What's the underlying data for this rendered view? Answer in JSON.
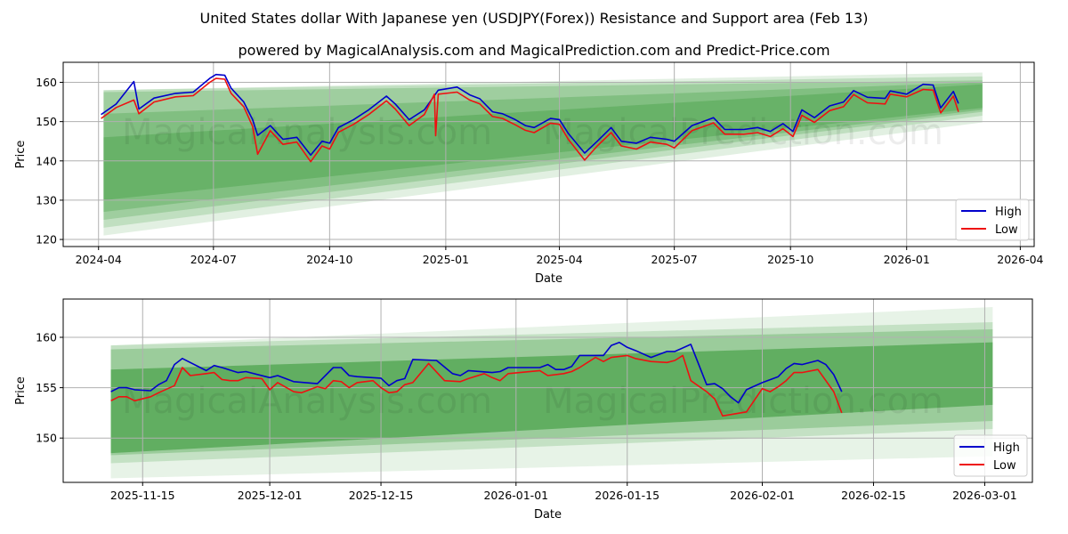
{
  "title": "United States dollar With Japanese yen (USDJPY(Forex)) Resistance and Support area (Feb 13)",
  "subtitle": "powered by MagicalAnalysis.com and MagicalPrediction.com and Predict-Price.com",
  "watermarks": [
    "MagicalAnalysis.com",
    "MagicalPrediction.com"
  ],
  "colors": {
    "high": "#0000cc",
    "low": "#ee1111",
    "band": "#3a9a3a",
    "grid": "#b0b0b0"
  },
  "chart_data": [
    {
      "type": "line",
      "xlabel": "Date",
      "ylabel": "Price",
      "xlim": [
        "2024-03-04",
        "2026-04-12"
      ],
      "ylim": [
        118.2,
        165.1
      ],
      "yticks": [
        120,
        130,
        140,
        150,
        160
      ],
      "xticks": [
        "2024-04-01",
        "2024-07-01",
        "2024-10-01",
        "2025-01-01",
        "2025-04-01",
        "2025-07-01",
        "2025-10-01",
        "2026-01-01",
        "2026-04-01"
      ],
      "xtick_labels": [
        "2024-04",
        "2024-07",
        "2024-10",
        "2025-01",
        "2025-04",
        "2025-07",
        "2025-10",
        "2026-01",
        "2026-04"
      ],
      "grid": true,
      "legend": {
        "position": "bottom-right",
        "entries": [
          "High",
          "Low"
        ]
      },
      "bands": {
        "x": [
          "2024-04-05",
          "2026-03-02"
        ],
        "levels": [
          {
            "start": [
              121.0,
              158.0
            ],
            "end": [
              149.8,
              162.5
            ],
            "opacity": 0.15
          },
          {
            "start": [
              123.0,
              158.0
            ],
            "end": [
              151.5,
              161.5
            ],
            "opacity": 0.2
          },
          {
            "start": [
              125.0,
              157.5
            ],
            "end": [
              152.5,
              160.5
            ],
            "opacity": 0.25
          },
          {
            "start": [
              127.0,
              152.0
            ],
            "end": [
              153.0,
              160.0
            ],
            "opacity": 0.3
          },
          {
            "start": [
              130.0,
              146.0
            ],
            "end": [
              153.5,
              159.5
            ],
            "opacity": 0.35
          }
        ]
      },
      "series": [
        {
          "name": "High",
          "x": [
            "2024-04-03",
            "2024-04-15",
            "2024-04-29",
            "2024-05-03",
            "2024-05-15",
            "2024-06-01",
            "2024-06-15",
            "2024-06-28",
            "2024-07-03",
            "2024-07-10",
            "2024-07-15",
            "2024-07-25",
            "2024-08-01",
            "2024-08-05",
            "2024-08-15",
            "2024-08-25",
            "2024-09-05",
            "2024-09-16",
            "2024-09-25",
            "2024-10-01",
            "2024-10-08",
            "2024-10-20",
            "2024-11-01",
            "2024-11-15",
            "2024-11-22",
            "2024-12-03",
            "2024-12-15",
            "2024-12-26",
            "2025-01-10",
            "2025-01-20",
            "2025-01-28",
            "2025-02-07",
            "2025-02-15",
            "2025-02-25",
            "2025-03-05",
            "2025-03-12",
            "2025-03-25",
            "2025-04-01",
            "2025-04-08",
            "2025-04-21",
            "2025-05-01",
            "2025-05-12",
            "2025-05-20",
            "2025-06-01",
            "2025-06-12",
            "2025-06-25",
            "2025-07-01",
            "2025-07-15",
            "2025-07-28",
            "2025-08-01",
            "2025-08-10",
            "2025-08-25",
            "2025-09-05",
            "2025-09-15",
            "2025-09-25",
            "2025-10-03",
            "2025-10-10",
            "2025-10-20",
            "2025-11-01",
            "2025-11-12",
            "2025-11-20",
            "2025-12-01",
            "2025-12-15",
            "2025-12-19",
            "2026-01-01",
            "2026-01-14",
            "2026-01-22",
            "2026-01-28",
            "2026-02-07",
            "2026-02-11"
          ],
          "values": [
            151.8,
            154.5,
            160.2,
            153.2,
            156.0,
            157.2,
            157.5,
            161.0,
            162.0,
            161.8,
            158.5,
            155.0,
            150.5,
            146.5,
            149.0,
            145.5,
            146.0,
            141.5,
            145.0,
            144.5,
            148.5,
            150.5,
            153.0,
            156.5,
            154.5,
            150.5,
            153.0,
            158.0,
            158.8,
            156.8,
            155.8,
            152.5,
            152.0,
            150.5,
            149.0,
            148.5,
            150.8,
            150.5,
            147.0,
            142.0,
            145.0,
            148.5,
            145.0,
            144.5,
            146.0,
            145.5,
            145.0,
            149.0,
            150.5,
            151.0,
            148.0,
            148.0,
            148.5,
            147.5,
            149.5,
            147.5,
            153.0,
            151.0,
            154.0,
            155.0,
            157.9,
            156.2,
            155.9,
            157.8,
            157.0,
            159.5,
            159.3,
            153.5,
            157.7,
            154.6
          ]
        },
        {
          "name": "Low",
          "x": [
            "2024-04-03",
            "2024-04-15",
            "2024-04-29",
            "2024-05-03",
            "2024-05-15",
            "2024-06-01",
            "2024-06-15",
            "2024-06-28",
            "2024-07-03",
            "2024-07-10",
            "2024-07-15",
            "2024-07-25",
            "2024-08-01",
            "2024-08-05",
            "2024-08-15",
            "2024-08-25",
            "2024-09-05",
            "2024-09-16",
            "2024-09-25",
            "2024-10-01",
            "2024-10-08",
            "2024-10-20",
            "2024-11-01",
            "2024-11-15",
            "2024-11-22",
            "2024-12-03",
            "2024-12-15",
            "2024-12-23",
            "2024-12-24",
            "2024-12-26",
            "2025-01-10",
            "2025-01-20",
            "2025-01-28",
            "2025-02-07",
            "2025-02-15",
            "2025-02-25",
            "2025-03-05",
            "2025-03-12",
            "2025-03-25",
            "2025-04-01",
            "2025-04-08",
            "2025-04-21",
            "2025-05-01",
            "2025-05-12",
            "2025-05-20",
            "2025-06-01",
            "2025-06-12",
            "2025-06-25",
            "2025-07-01",
            "2025-07-15",
            "2025-07-28",
            "2025-08-01",
            "2025-08-10",
            "2025-08-25",
            "2025-09-05",
            "2025-09-15",
            "2025-09-25",
            "2025-10-03",
            "2025-10-10",
            "2025-10-20",
            "2025-11-01",
            "2025-11-12",
            "2025-11-20",
            "2025-12-01",
            "2025-12-15",
            "2025-12-19",
            "2026-01-01",
            "2026-01-14",
            "2026-01-22",
            "2026-01-28",
            "2026-02-07",
            "2026-02-11"
          ],
          "values": [
            150.8,
            153.6,
            155.5,
            152.0,
            155.0,
            156.3,
            156.6,
            160.0,
            161.0,
            160.8,
            157.2,
            153.8,
            148.8,
            141.7,
            147.7,
            144.2,
            144.8,
            139.8,
            143.8,
            143.0,
            147.3,
            149.3,
            151.8,
            155.3,
            153.2,
            149.0,
            151.8,
            157.0,
            146.4,
            157.0,
            157.5,
            155.5,
            154.5,
            151.3,
            150.8,
            149.2,
            147.8,
            147.2,
            149.6,
            149.3,
            145.5,
            140.2,
            143.8,
            147.2,
            143.8,
            143.0,
            144.8,
            144.2,
            143.3,
            147.7,
            149.2,
            149.7,
            146.8,
            146.8,
            147.2,
            146.2,
            148.2,
            146.2,
            151.6,
            149.8,
            152.8,
            153.8,
            156.9,
            154.8,
            154.5,
            157.0,
            156.3,
            158.2,
            158.0,
            152.2,
            156.5,
            152.5
          ]
        }
      ]
    },
    {
      "type": "line",
      "xlabel": "Date",
      "ylabel": "Price",
      "xlim": [
        "2025-11-05",
        "2026-03-07"
      ],
      "ylim": [
        145.6,
        163.8
      ],
      "yticks": [
        150,
        155,
        160
      ],
      "xticks": [
        "2025-11-15",
        "2025-12-01",
        "2025-12-15",
        "2026-01-01",
        "2026-01-15",
        "2026-02-01",
        "2026-02-15",
        "2026-03-01"
      ],
      "xtick_labels": [
        "2025-11-15",
        "2025-12-01",
        "2025-12-15",
        "2026-01-01",
        "2026-01-15",
        "2026-02-01",
        "2026-02-15",
        "2026-03-01"
      ],
      "grid": true,
      "legend": {
        "position": "bottom-right",
        "entries": [
          "High",
          "Low"
        ]
      },
      "bands": {
        "x": [
          "2025-11-11",
          "2026-03-02"
        ],
        "levels": [
          {
            "start": [
              146.0,
              159.2
            ],
            "end": [
              148.2,
              163.0
            ],
            "opacity": 0.12
          },
          {
            "start": [
              147.5,
              159.2
            ],
            "end": [
              150.9,
              161.5
            ],
            "opacity": 0.2
          },
          {
            "start": [
              148.3,
              158.8
            ],
            "end": [
              151.7,
              160.8
            ],
            "opacity": 0.3
          },
          {
            "start": [
              148.5,
              156.8
            ],
            "end": [
              153.3,
              159.5
            ],
            "opacity": 0.6
          }
        ]
      },
      "series": [
        {
          "name": "High",
          "x": [
            "2025-11-11",
            "2025-11-12",
            "2025-11-13",
            "2025-11-14",
            "2025-11-16",
            "2025-11-17",
            "2025-11-18",
            "2025-11-19",
            "2025-11-20",
            "2025-11-23",
            "2025-11-24",
            "2025-11-25",
            "2025-11-27",
            "2025-11-28",
            "2025-12-01",
            "2025-12-02",
            "2025-12-04",
            "2025-12-07",
            "2025-12-09",
            "2025-12-10",
            "2025-12-11",
            "2025-12-12",
            "2025-12-15",
            "2025-12-16",
            "2025-12-17",
            "2025-12-18",
            "2025-12-19",
            "2025-12-22",
            "2025-12-24",
            "2025-12-25",
            "2025-12-26",
            "2025-12-29",
            "2025-12-30",
            "2025-12-31",
            "2026-01-04",
            "2026-01-05",
            "2026-01-06",
            "2026-01-07",
            "2026-01-08",
            "2026-01-09",
            "2026-01-12",
            "2026-01-13",
            "2026-01-14",
            "2026-01-15",
            "2026-01-16",
            "2026-01-18",
            "2026-01-20",
            "2026-01-21",
            "2026-01-23",
            "2026-01-25",
            "2026-01-26",
            "2026-01-27",
            "2026-01-28",
            "2026-01-29",
            "2026-01-30",
            "2026-02-01",
            "2026-02-03",
            "2026-02-04",
            "2026-02-05",
            "2026-02-06",
            "2026-02-08",
            "2026-02-09",
            "2026-02-10",
            "2026-02-11"
          ],
          "values": [
            154.6,
            155.0,
            155.0,
            154.8,
            154.7,
            155.3,
            155.7,
            157.3,
            157.9,
            156.7,
            157.2,
            157.0,
            156.5,
            156.6,
            156.0,
            156.2,
            155.6,
            155.4,
            157.0,
            157.0,
            156.2,
            156.1,
            155.95,
            155.2,
            155.7,
            155.9,
            157.8,
            157.7,
            156.4,
            156.2,
            156.7,
            156.5,
            156.6,
            157.0,
            157.0,
            157.3,
            156.8,
            156.8,
            157.1,
            158.2,
            158.2,
            159.2,
            159.5,
            159.0,
            158.7,
            158.0,
            158.6,
            158.6,
            159.3,
            155.3,
            155.4,
            154.9,
            154.1,
            153.5,
            154.8,
            155.5,
            156.1,
            156.9,
            157.4,
            157.3,
            157.7,
            157.3,
            156.3,
            154.6
          ]
        },
        {
          "name": "Low",
          "x": [
            "2025-11-11",
            "2025-11-12",
            "2025-11-13",
            "2025-11-14",
            "2025-11-16",
            "2025-11-17",
            "2025-11-19",
            "2025-11-20",
            "2025-11-21",
            "2025-11-23",
            "2025-11-24",
            "2025-11-25",
            "2025-11-26",
            "2025-11-27",
            "2025-11-28",
            "2025-11-30",
            "2025-12-01",
            "2025-12-02",
            "2025-12-04",
            "2025-12-05",
            "2025-12-07",
            "2025-12-08",
            "2025-12-09",
            "2025-12-10",
            "2025-12-11",
            "2025-12-12",
            "2025-12-14",
            "2025-12-15",
            "2025-12-16",
            "2025-12-17",
            "2025-12-18",
            "2025-12-19",
            "2025-12-21",
            "2025-12-23",
            "2025-12-25",
            "2025-12-26",
            "2025-12-28",
            "2025-12-29",
            "2025-12-30",
            "2025-12-31",
            "2026-01-04",
            "2026-01-05",
            "2026-01-07",
            "2026-01-08",
            "2026-01-09",
            "2026-01-11",
            "2026-01-12",
            "2026-01-13",
            "2026-01-15",
            "2026-01-16",
            "2026-01-18",
            "2026-01-20",
            "2026-01-21",
            "2026-01-22",
            "2026-01-23",
            "2026-01-25",
            "2026-01-26",
            "2026-01-27",
            "2026-01-30",
            "2026-02-01",
            "2026-02-02",
            "2026-02-03",
            "2026-02-04",
            "2026-02-05",
            "2026-02-06",
            "2026-02-08",
            "2026-02-10",
            "2026-02-11"
          ],
          "values": [
            153.7,
            154.1,
            154.1,
            153.7,
            154.1,
            154.5,
            155.2,
            157.0,
            156.2,
            156.4,
            156.5,
            155.8,
            155.7,
            155.7,
            156.0,
            155.9,
            154.8,
            155.5,
            154.6,
            154.5,
            155.1,
            154.9,
            155.7,
            155.6,
            155.0,
            155.5,
            155.7,
            155.0,
            154.5,
            154.6,
            155.3,
            155.5,
            157.4,
            155.7,
            155.6,
            155.9,
            156.4,
            156.0,
            155.7,
            156.4,
            156.7,
            156.2,
            156.4,
            156.6,
            157.0,
            158.0,
            157.6,
            158.0,
            158.2,
            157.9,
            157.6,
            157.5,
            157.7,
            158.2,
            155.7,
            154.6,
            153.9,
            152.2,
            152.6,
            154.9,
            154.6,
            155.1,
            155.7,
            156.5,
            156.5,
            156.8,
            154.6,
            152.5
          ]
        }
      ]
    }
  ]
}
